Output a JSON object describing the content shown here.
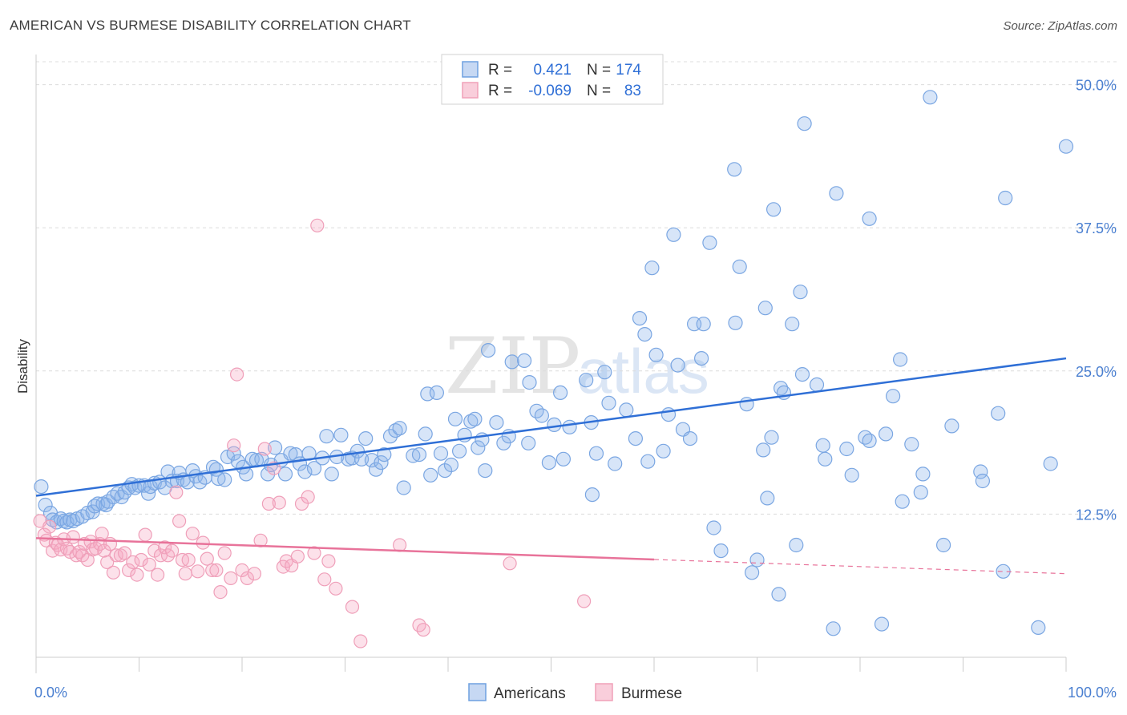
{
  "header": {
    "title": "AMERICAN VS BURMESE DISABILITY CORRELATION CHART",
    "source": "Source: ZipAtlas.com"
  },
  "watermark": {
    "zip": "ZIP",
    "atlas": "atlas"
  },
  "legend_box": {
    "rows": [
      {
        "r_label": "R =",
        "r_value": "0.421",
        "n_label": "N =",
        "n_value": "174",
        "color": "#6fa0e0"
      },
      {
        "r_label": "R =",
        "r_value": "-0.069",
        "n_label": "N =",
        "n_value": "83",
        "color": "#f0a0b8"
      }
    ]
  },
  "chart_data": {
    "type": "scatter",
    "title": "AMERICAN VS BURMESE DISABILITY CORRELATION CHART",
    "xlabel": "",
    "ylabel": "Disability",
    "xlim": [
      0,
      100
    ],
    "ylim": [
      0,
      52
    ],
    "x_tick_labels": [
      "0.0%",
      "100.0%"
    ],
    "y_ticks": [
      12.5,
      25.0,
      37.5,
      50.0
    ],
    "y_tick_labels": [
      "12.5%",
      "25.0%",
      "37.5%",
      "50.0%"
    ],
    "grid": "horizontal dashed",
    "legend_position": "bottom-center",
    "colors": {
      "americans": "#6fa0e0",
      "americans_line": "#2f6fd6",
      "burmese": "#f0a0b8",
      "burmese_line": "#e8739a"
    },
    "series": [
      {
        "name": "Americans",
        "trend": {
          "x": [
            0,
            100
          ],
          "y": [
            14.1,
            26.1
          ],
          "solid_until": 100
        },
        "points": [
          [
            0.5,
            14.9
          ],
          [
            0.9,
            13.3
          ],
          [
            1.4,
            12.6
          ],
          [
            1.6,
            12.0
          ],
          [
            2.0,
            11.8
          ],
          [
            2.4,
            12.1
          ],
          [
            2.7,
            11.9
          ],
          [
            3.0,
            11.8
          ],
          [
            3.3,
            12.0
          ],
          [
            3.6,
            11.9
          ],
          [
            4.0,
            12.1
          ],
          [
            4.5,
            12.3
          ],
          [
            5.0,
            12.6
          ],
          [
            5.5,
            12.7
          ],
          [
            5.7,
            13.2
          ],
          [
            6.0,
            13.4
          ],
          [
            6.5,
            13.4
          ],
          [
            6.8,
            13.3
          ],
          [
            7.0,
            13.6
          ],
          [
            7.5,
            14.0
          ],
          [
            7.9,
            14.3
          ],
          [
            8.3,
            14.0
          ],
          [
            8.6,
            14.4
          ],
          [
            9.0,
            14.8
          ],
          [
            9.3,
            15.1
          ],
          [
            9.6,
            14.8
          ],
          [
            10.0,
            15.0
          ],
          [
            10.5,
            15.0
          ],
          [
            10.9,
            14.3
          ],
          [
            11.1,
            14.9
          ],
          [
            11.5,
            15.2
          ],
          [
            12.0,
            15.3
          ],
          [
            12.5,
            14.8
          ],
          [
            12.8,
            16.2
          ],
          [
            13.2,
            15.4
          ],
          [
            13.7,
            15.4
          ],
          [
            13.9,
            16.1
          ],
          [
            14.3,
            15.5
          ],
          [
            14.7,
            15.3
          ],
          [
            15.2,
            16.3
          ],
          [
            15.5,
            15.8
          ],
          [
            15.9,
            15.3
          ],
          [
            16.4,
            15.7
          ],
          [
            17.2,
            16.6
          ],
          [
            17.5,
            16.4
          ],
          [
            17.7,
            15.6
          ],
          [
            18.3,
            15.5
          ],
          [
            18.6,
            17.5
          ],
          [
            19.2,
            17.8
          ],
          [
            19.6,
            17.1
          ],
          [
            20.1,
            16.6
          ],
          [
            20.4,
            16.0
          ],
          [
            21.0,
            17.3
          ],
          [
            21.4,
            17.2
          ],
          [
            21.9,
            17.3
          ],
          [
            22.5,
            16.0
          ],
          [
            22.8,
            16.8
          ],
          [
            23.2,
            18.3
          ],
          [
            23.8,
            17.2
          ],
          [
            24.2,
            16.0
          ],
          [
            24.7,
            17.8
          ],
          [
            25.2,
            17.7
          ],
          [
            25.6,
            16.9
          ],
          [
            26.1,
            16.2
          ],
          [
            26.5,
            17.8
          ],
          [
            27.0,
            16.5
          ],
          [
            27.8,
            17.4
          ],
          [
            28.2,
            19.3
          ],
          [
            28.7,
            16.0
          ],
          [
            29.2,
            17.5
          ],
          [
            29.6,
            19.4
          ],
          [
            30.3,
            17.3
          ],
          [
            30.7,
            17.4
          ],
          [
            31.2,
            18.0
          ],
          [
            31.6,
            17.3
          ],
          [
            32.0,
            19.1
          ],
          [
            32.6,
            17.2
          ],
          [
            33.0,
            16.4
          ],
          [
            33.5,
            17.0
          ],
          [
            33.8,
            17.7
          ],
          [
            34.4,
            19.3
          ],
          [
            34.9,
            19.8
          ],
          [
            35.3,
            20.0
          ],
          [
            35.7,
            14.8
          ],
          [
            36.6,
            17.6
          ],
          [
            37.2,
            17.7
          ],
          [
            37.8,
            19.5
          ],
          [
            38.0,
            23.0
          ],
          [
            38.3,
            15.9
          ],
          [
            38.9,
            23.1
          ],
          [
            39.3,
            17.8
          ],
          [
            39.7,
            16.3
          ],
          [
            40.3,
            16.8
          ],
          [
            40.7,
            20.8
          ],
          [
            41.1,
            18.0
          ],
          [
            41.6,
            19.4
          ],
          [
            42.2,
            20.6
          ],
          [
            42.6,
            20.8
          ],
          [
            42.9,
            18.3
          ],
          [
            43.3,
            19.0
          ],
          [
            43.6,
            16.3
          ],
          [
            43.9,
            26.8
          ],
          [
            44.7,
            20.5
          ],
          [
            45.4,
            18.7
          ],
          [
            45.9,
            19.3
          ],
          [
            46.2,
            25.8
          ],
          [
            47.4,
            25.9
          ],
          [
            47.8,
            18.7
          ],
          [
            47.9,
            24.0
          ],
          [
            48.6,
            21.5
          ],
          [
            49.1,
            21.1
          ],
          [
            49.8,
            17.0
          ],
          [
            50.3,
            20.3
          ],
          [
            50.9,
            23.1
          ],
          [
            51.2,
            17.3
          ],
          [
            51.8,
            20.1
          ],
          [
            53.4,
            24.2
          ],
          [
            53.9,
            20.5
          ],
          [
            54.0,
            14.2
          ],
          [
            54.4,
            17.8
          ],
          [
            55.2,
            24.9
          ],
          [
            55.6,
            22.2
          ],
          [
            56.2,
            16.9
          ],
          [
            57.3,
            21.6
          ],
          [
            58.2,
            19.1
          ],
          [
            58.6,
            29.6
          ],
          [
            59.1,
            28.2
          ],
          [
            59.4,
            17.1
          ],
          [
            59.8,
            34.0
          ],
          [
            60.2,
            26.4
          ],
          [
            60.9,
            18.0
          ],
          [
            61.4,
            21.2
          ],
          [
            61.9,
            36.9
          ],
          [
            62.3,
            25.5
          ],
          [
            62.8,
            19.9
          ],
          [
            63.5,
            19.1
          ],
          [
            63.9,
            29.1
          ],
          [
            64.6,
            26.1
          ],
          [
            64.8,
            29.1
          ],
          [
            65.4,
            36.2
          ],
          [
            65.8,
            11.3
          ],
          [
            66.5,
            9.3
          ],
          [
            67.8,
            42.6
          ],
          [
            67.9,
            29.2
          ],
          [
            68.3,
            34.1
          ],
          [
            69.0,
            22.1
          ],
          [
            69.5,
            7.4
          ],
          [
            70.0,
            8.5
          ],
          [
            70.6,
            18.1
          ],
          [
            70.8,
            30.5
          ],
          [
            71.0,
            13.9
          ],
          [
            71.4,
            19.2
          ],
          [
            71.6,
            39.1
          ],
          [
            72.1,
            5.5
          ],
          [
            72.3,
            23.5
          ],
          [
            72.6,
            23.1
          ],
          [
            73.4,
            29.1
          ],
          [
            73.8,
            9.8
          ],
          [
            74.2,
            31.9
          ],
          [
            74.4,
            24.7
          ],
          [
            74.6,
            46.6
          ],
          [
            75.8,
            23.8
          ],
          [
            76.4,
            18.5
          ],
          [
            76.6,
            17.3
          ],
          [
            77.4,
            2.5
          ],
          [
            77.7,
            40.5
          ],
          [
            78.7,
            18.2
          ],
          [
            79.2,
            15.9
          ],
          [
            80.5,
            19.2
          ],
          [
            80.9,
            18.9
          ],
          [
            80.9,
            38.3
          ],
          [
            82.1,
            2.9
          ],
          [
            82.5,
            19.5
          ],
          [
            83.2,
            22.8
          ],
          [
            83.9,
            26.0
          ],
          [
            84.1,
            13.6
          ],
          [
            85.0,
            18.6
          ],
          [
            85.9,
            14.4
          ],
          [
            86.1,
            16.0
          ],
          [
            86.8,
            48.9
          ],
          [
            88.1,
            9.8
          ],
          [
            88.9,
            20.2
          ],
          [
            91.7,
            16.2
          ],
          [
            91.9,
            15.4
          ],
          [
            93.4,
            21.3
          ],
          [
            93.9,
            7.5
          ],
          [
            94.1,
            40.1
          ],
          [
            97.3,
            2.6
          ],
          [
            98.5,
            16.9
          ],
          [
            100.0,
            44.6
          ]
        ]
      },
      {
        "name": "Burmese",
        "trend": {
          "x": [
            0,
            100
          ],
          "y": [
            10.4,
            7.3
          ],
          "solid_until": 60
        },
        "points": [
          [
            0.4,
            11.9
          ],
          [
            0.8,
            10.7
          ],
          [
            1.0,
            10.2
          ],
          [
            1.3,
            11.4
          ],
          [
            1.6,
            9.3
          ],
          [
            1.9,
            10.0
          ],
          [
            2.1,
            9.8
          ],
          [
            2.4,
            9.4
          ],
          [
            2.7,
            10.3
          ],
          [
            3.0,
            9.5
          ],
          [
            3.3,
            9.2
          ],
          [
            3.6,
            10.5
          ],
          [
            3.9,
            8.9
          ],
          [
            4.2,
            9.2
          ],
          [
            4.5,
            8.9
          ],
          [
            4.7,
            9.9
          ],
          [
            5.0,
            8.5
          ],
          [
            5.3,
            10.1
          ],
          [
            5.5,
            9.4
          ],
          [
            5.8,
            9.5
          ],
          [
            6.2,
            9.9
          ],
          [
            6.4,
            10.8
          ],
          [
            6.6,
            9.3
          ],
          [
            6.9,
            8.3
          ],
          [
            7.2,
            9.9
          ],
          [
            7.5,
            7.4
          ],
          [
            7.8,
            8.9
          ],
          [
            8.2,
            8.9
          ],
          [
            8.6,
            9.1
          ],
          [
            9.0,
            7.6
          ],
          [
            9.4,
            8.3
          ],
          [
            9.8,
            7.2
          ],
          [
            10.2,
            8.5
          ],
          [
            10.6,
            10.7
          ],
          [
            11.0,
            8.1
          ],
          [
            11.5,
            9.3
          ],
          [
            11.8,
            7.2
          ],
          [
            12.1,
            8.9
          ],
          [
            12.5,
            9.6
          ],
          [
            12.8,
            8.9
          ],
          [
            13.2,
            9.3
          ],
          [
            13.6,
            14.4
          ],
          [
            13.9,
            11.9
          ],
          [
            14.2,
            8.5
          ],
          [
            14.5,
            7.3
          ],
          [
            14.8,
            8.5
          ],
          [
            15.2,
            10.8
          ],
          [
            15.7,
            7.5
          ],
          [
            16.2,
            10.0
          ],
          [
            16.6,
            8.6
          ],
          [
            17.1,
            7.6
          ],
          [
            17.5,
            7.6
          ],
          [
            17.9,
            5.7
          ],
          [
            18.3,
            9.1
          ],
          [
            18.9,
            6.9
          ],
          [
            19.2,
            18.5
          ],
          [
            19.5,
            24.7
          ],
          [
            20.0,
            7.6
          ],
          [
            20.5,
            6.9
          ],
          [
            21.2,
            7.3
          ],
          [
            21.8,
            10.2
          ],
          [
            22.2,
            18.2
          ],
          [
            22.6,
            13.4
          ],
          [
            23.1,
            16.5
          ],
          [
            23.6,
            13.5
          ],
          [
            24.0,
            7.9
          ],
          [
            24.3,
            8.4
          ],
          [
            24.8,
            8.0
          ],
          [
            25.4,
            8.8
          ],
          [
            25.8,
            13.4
          ],
          [
            26.4,
            14.0
          ],
          [
            27.0,
            9.1
          ],
          [
            27.3,
            37.7
          ],
          [
            28.0,
            6.8
          ],
          [
            28.4,
            8.4
          ],
          [
            29.1,
            6.0
          ],
          [
            30.7,
            4.4
          ],
          [
            31.5,
            1.4
          ],
          [
            35.3,
            9.8
          ],
          [
            37.2,
            2.8
          ],
          [
            37.6,
            2.4
          ],
          [
            46.0,
            8.2
          ],
          [
            53.2,
            4.9
          ]
        ]
      }
    ]
  },
  "bottom_legend": {
    "items": [
      {
        "label": "Americans",
        "color": "#6fa0e0"
      },
      {
        "label": "Burmese",
        "color": "#f0a0b8"
      }
    ]
  }
}
